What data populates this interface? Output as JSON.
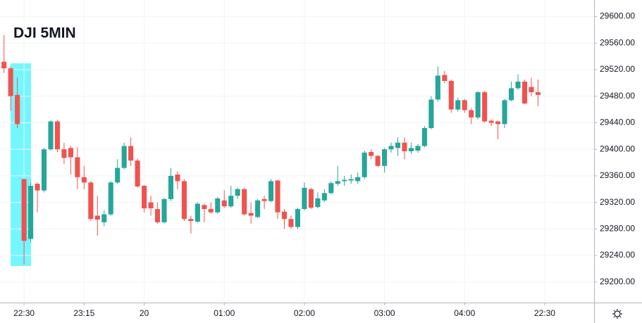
{
  "chart_data": {
    "type": "candlestick",
    "title": "DJI 5MIN",
    "x": [
      0,
      1,
      2,
      3,
      4,
      5,
      6,
      7,
      8,
      9,
      10,
      11,
      12,
      13,
      14,
      15,
      16,
      17,
      18,
      19,
      20,
      21,
      22,
      23,
      24,
      25,
      26,
      27,
      28,
      29,
      30,
      31,
      32,
      33,
      34,
      35,
      36,
      37,
      38,
      39,
      40,
      41,
      42,
      43,
      44,
      45,
      46,
      47,
      48,
      49,
      50,
      51,
      52,
      53,
      54,
      55,
      56,
      57,
      58,
      59,
      60,
      61,
      62,
      63,
      64,
      65,
      66,
      67,
      68,
      69,
      70,
      71,
      72,
      73,
      74,
      75,
      76,
      77,
      78,
      79,
      80
    ],
    "open": [
      29532,
      29522,
      29482,
      29355,
      29265,
      29348,
      29338,
      29400,
      29442,
      29400,
      29402,
      29388,
      29358,
      29350,
      29300,
      29290,
      29302,
      29350,
      29372,
      29405,
      29383,
      29345,
      29320,
      29310,
      29290,
      29325,
      29362,
      29352,
      29295,
      29291,
      29316,
      29310,
      29305,
      29323,
      29314,
      29330,
      29340,
      29304,
      29298,
      29325,
      29322,
      29353,
      29306,
      29295,
      29283,
      29310,
      29340,
      29313,
      29323,
      29334,
      29348,
      29352,
      29353,
      29352,
      29358,
      29396,
      29390,
      29375,
      29400,
      29402,
      29410,
      29397,
      29398,
      29405,
      29432,
      29475,
      29512,
      29503,
      29460,
      29474,
      29459,
      29448,
      29486,
      29443,
      29442,
      29438,
      29474,
      29492,
      29502,
      29494,
      29486
    ],
    "high": [
      29572,
      29525,
      29508,
      29356,
      29350,
      29350,
      29402,
      29444,
      29444,
      29410,
      29405,
      29403,
      29375,
      29352,
      29330,
      29308,
      29352,
      29385,
      29410,
      29418,
      29386,
      29346,
      29330,
      29320,
      29327,
      29372,
      29367,
      29355,
      29300,
      29320,
      29318,
      29320,
      29328,
      29338,
      29345,
      29342,
      29342,
      29320,
      29325,
      29330,
      29355,
      29354,
      29310,
      29300,
      29312,
      29350,
      29342,
      29335,
      29340,
      29352,
      29375,
      29360,
      29362,
      29365,
      29398,
      29400,
      29392,
      29402,
      29410,
      29418,
      29418,
      29410,
      29408,
      29435,
      29480,
      29525,
      29518,
      29505,
      29478,
      29476,
      29462,
      29488,
      29488,
      29445,
      29443,
      29476,
      29502,
      29513,
      29505,
      29508,
      29505
    ],
    "low": [
      29515,
      29458,
      29432,
      29226,
      29260,
      29305,
      29335,
      29398,
      29396,
      29378,
      29362,
      29340,
      29340,
      29292,
      29270,
      29284,
      29300,
      29348,
      29370,
      29375,
      29342,
      29305,
      29300,
      29288,
      29288,
      29322,
      29340,
      29292,
      29273,
      29289,
      29290,
      29303,
      29303,
      29312,
      29312,
      29325,
      29300,
      29288,
      29296,
      29310,
      29320,
      29295,
      29280,
      29280,
      29280,
      29308,
      29310,
      29311,
      29320,
      29332,
      29345,
      29345,
      29348,
      29348,
      29355,
      29385,
      29373,
      29365,
      29395,
      29390,
      29385,
      29393,
      29395,
      29403,
      29430,
      29472,
      29500,
      29455,
      29457,
      29455,
      29438,
      29445,
      29440,
      29435,
      29415,
      29432,
      29472,
      29490,
      29468,
      29480,
      29465
    ],
    "close": [
      29522,
      29480,
      29438,
      29262,
      29345,
      29338,
      29400,
      29442,
      29400,
      29387,
      29388,
      29358,
      29350,
      29295,
      29294,
      29302,
      29350,
      29372,
      29405,
      29383,
      29344,
      29311,
      29311,
      29290,
      29325,
      29360,
      29352,
      29295,
      29292,
      29318,
      29310,
      29305,
      29326,
      29314,
      29330,
      29340,
      29302,
      29300,
      29323,
      29322,
      29352,
      29305,
      29295,
      29283,
      29310,
      29342,
      29312,
      29326,
      29334,
      29349,
      29352,
      29354,
      29355,
      29358,
      29395,
      29390,
      29375,
      29400,
      29405,
      29410,
      29397,
      29402,
      29405,
      29432,
      29475,
      29511,
      29503,
      29460,
      29474,
      29459,
      29448,
      29486,
      29442,
      29440,
      29438,
      29474,
      29492,
      29502,
      29469,
      29486,
      29482
    ],
    "up_color": "#26a69a",
    "down_color": "#ef5350",
    "xlim": [
      -0.6,
      88.4
    ],
    "xticks": [
      {
        "value": 3,
        "label": "22:30"
      },
      {
        "value": 12,
        "label": "23:15"
      },
      {
        "value": 21,
        "label": "20"
      },
      {
        "value": 33,
        "label": "01:00"
      },
      {
        "value": 45,
        "label": "02:00"
      },
      {
        "value": 57,
        "label": "03:00"
      },
      {
        "value": 69,
        "label": "04:00"
      },
      {
        "value": 81,
        "label": "22:30"
      }
    ],
    "ylim": [
      29169,
      29625
    ],
    "yticks": [
      {
        "value": 29200,
        "label": "29200.00"
      },
      {
        "value": 29240,
        "label": "29240.00"
      },
      {
        "value": 29280,
        "label": "29280.00"
      },
      {
        "value": 29320,
        "label": "29320.00"
      },
      {
        "value": 29360,
        "label": "29360.00"
      },
      {
        "value": 29400,
        "label": "29400.00"
      },
      {
        "value": 29440,
        "label": "29440.00"
      },
      {
        "value": 29480,
        "label": "29480.00"
      },
      {
        "value": 29520,
        "label": "29520.00"
      },
      {
        "value": 29560,
        "label": "29560.00"
      },
      {
        "value": 29600,
        "label": "29600.00"
      }
    ],
    "grid": true
  }
}
